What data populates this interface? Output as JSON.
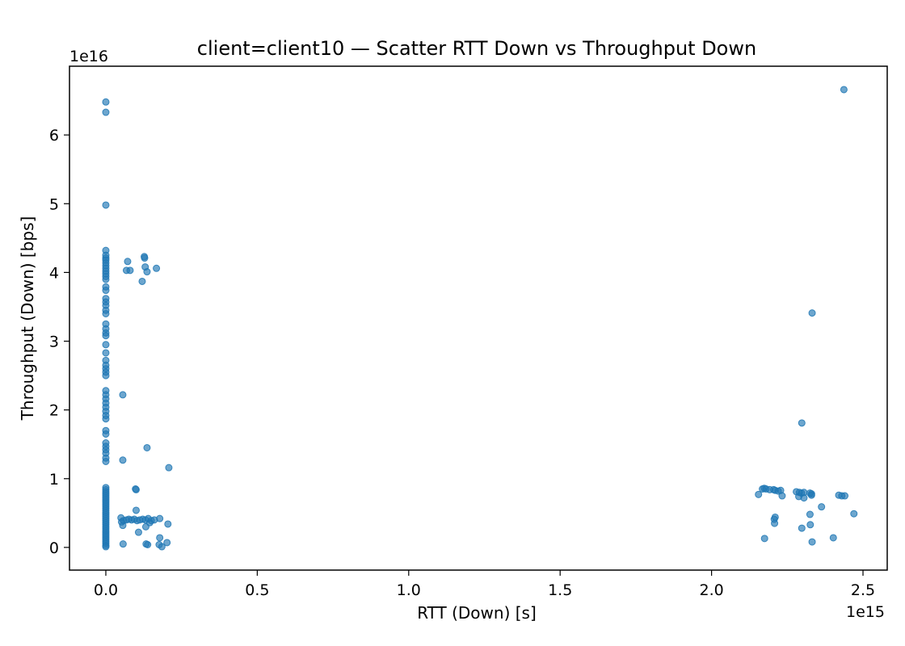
{
  "chart_data": {
    "type": "scatter",
    "title": "client=client10 — Scatter RTT Down vs Throughput Down",
    "xlabel": "RTT (Down) [s]",
    "ylabel": "Throughput (Down) [bps]",
    "x_offset_label": "1e15",
    "y_offset_label": "1e16",
    "x_scale": 1000000000000000.0,
    "y_scale": 1e+16,
    "xlim": [
      -0.12,
      2.58
    ],
    "ylim": [
      -0.33,
      7.0
    ],
    "x_ticks": [
      0.0,
      0.5,
      1.0,
      1.5,
      2.0,
      2.5
    ],
    "x_tick_labels": [
      "0.0",
      "0.5",
      "1.0",
      "1.5",
      "2.0",
      "2.5"
    ],
    "y_ticks": [
      0,
      1,
      2,
      3,
      4,
      5,
      6
    ],
    "y_tick_labels": [
      "0",
      "1",
      "2",
      "3",
      "4",
      "5",
      "6"
    ],
    "grid": false,
    "legend": "none",
    "marker_color": "#1f77b4",
    "marker_alpha": 0.65,
    "series": [
      {
        "points": [
          [
            0.0,
            6.48
          ],
          [
            0.0,
            6.33
          ],
          [
            0.0,
            4.98
          ],
          [
            0.0,
            4.32
          ],
          [
            0.0,
            4.25
          ],
          [
            0.0,
            4.21
          ],
          [
            0.0,
            4.18
          ],
          [
            0.0,
            4.14
          ],
          [
            0.0,
            4.1
          ],
          [
            0.0,
            4.06
          ],
          [
            0.0,
            4.02
          ],
          [
            0.0,
            3.98
          ],
          [
            0.0,
            3.94
          ],
          [
            0.0,
            3.9
          ],
          [
            0.0,
            3.79
          ],
          [
            0.0,
            3.74
          ],
          [
            0.0,
            3.62
          ],
          [
            0.0,
            3.57
          ],
          [
            0.0,
            3.52
          ],
          [
            0.0,
            3.45
          ],
          [
            0.0,
            3.4
          ],
          [
            0.0,
            3.25
          ],
          [
            0.0,
            3.18
          ],
          [
            0.0,
            3.12
          ],
          [
            0.0,
            3.08
          ],
          [
            0.0,
            2.95
          ],
          [
            0.0,
            2.83
          ],
          [
            0.0,
            2.72
          ],
          [
            0.0,
            2.65
          ],
          [
            0.0,
            2.6
          ],
          [
            0.0,
            2.55
          ],
          [
            0.0,
            2.5
          ],
          [
            0.0,
            2.28
          ],
          [
            0.0,
            2.22
          ],
          [
            0.0,
            2.16
          ],
          [
            0.0,
            2.1
          ],
          [
            0.0,
            2.04
          ],
          [
            0.0,
            1.98
          ],
          [
            0.0,
            1.92
          ],
          [
            0.0,
            1.87
          ],
          [
            0.0,
            1.7
          ],
          [
            0.0,
            1.65
          ],
          [
            0.0,
            1.52
          ],
          [
            0.0,
            1.47
          ],
          [
            0.0,
            1.42
          ],
          [
            0.0,
            1.37
          ],
          [
            0.0,
            1.3
          ],
          [
            0.0,
            1.25
          ],
          [
            0.0,
            0.87
          ],
          [
            0.0,
            0.84
          ],
          [
            0.0,
            0.81
          ],
          [
            0.0,
            0.78
          ],
          [
            0.0,
            0.75
          ],
          [
            0.0,
            0.72
          ],
          [
            0.0,
            0.69
          ],
          [
            0.0,
            0.66
          ],
          [
            0.0,
            0.63
          ],
          [
            0.0,
            0.6
          ],
          [
            0.0,
            0.57
          ],
          [
            0.0,
            0.54
          ],
          [
            0.0,
            0.51
          ],
          [
            0.0,
            0.48
          ],
          [
            0.0,
            0.45
          ],
          [
            0.0,
            0.42
          ],
          [
            0.0,
            0.39
          ],
          [
            0.0,
            0.36
          ],
          [
            0.0,
            0.33
          ],
          [
            0.0,
            0.3
          ],
          [
            0.0,
            0.27
          ],
          [
            0.0,
            0.24
          ],
          [
            0.0,
            0.21
          ],
          [
            0.0,
            0.18
          ],
          [
            0.0,
            0.15
          ],
          [
            0.0,
            0.12
          ],
          [
            0.0,
            0.09
          ],
          [
            0.0,
            0.06
          ],
          [
            0.0,
            0.03
          ],
          [
            0.0,
            0.01
          ],
          [
            0.072,
            4.16
          ],
          [
            0.068,
            4.03
          ],
          [
            0.08,
            4.03
          ],
          [
            0.127,
            4.23
          ],
          [
            0.128,
            4.21
          ],
          [
            0.13,
            4.08
          ],
          [
            0.136,
            4.01
          ],
          [
            0.167,
            4.06
          ],
          [
            0.12,
            3.87
          ],
          [
            0.056,
            2.22
          ],
          [
            0.136,
            1.45
          ],
          [
            0.056,
            1.27
          ],
          [
            0.208,
            1.16
          ],
          [
            0.098,
            0.85
          ],
          [
            0.1,
            0.84
          ],
          [
            0.1,
            0.54
          ],
          [
            0.05,
            0.43
          ],
          [
            0.058,
            0.39
          ],
          [
            0.068,
            0.4
          ],
          [
            0.076,
            0.41
          ],
          [
            0.085,
            0.4
          ],
          [
            0.094,
            0.41
          ],
          [
            0.103,
            0.39
          ],
          [
            0.112,
            0.4
          ],
          [
            0.122,
            0.41
          ],
          [
            0.131,
            0.4
          ],
          [
            0.14,
            0.42
          ],
          [
            0.15,
            0.39
          ],
          [
            0.16,
            0.4
          ],
          [
            0.178,
            0.42
          ],
          [
            0.145,
            0.36
          ],
          [
            0.052,
            0.37
          ],
          [
            0.056,
            0.32
          ],
          [
            0.132,
            0.3
          ],
          [
            0.205,
            0.34
          ],
          [
            0.108,
            0.22
          ],
          [
            0.178,
            0.14
          ],
          [
            0.202,
            0.07
          ],
          [
            0.176,
            0.04
          ],
          [
            0.185,
            0.01
          ],
          [
            0.057,
            0.05
          ],
          [
            0.133,
            0.05
          ],
          [
            0.138,
            0.04
          ],
          [
            2.168,
            0.85
          ],
          [
            2.174,
            0.86
          ],
          [
            2.18,
            0.85
          ],
          [
            2.192,
            0.84
          ],
          [
            2.205,
            0.84
          ],
          [
            2.21,
            0.83
          ],
          [
            2.22,
            0.82
          ],
          [
            2.228,
            0.83
          ],
          [
            2.155,
            0.77
          ],
          [
            2.233,
            0.75
          ],
          [
            2.28,
            0.81
          ],
          [
            2.29,
            0.8
          ],
          [
            2.297,
            0.79
          ],
          [
            2.305,
            0.8
          ],
          [
            2.325,
            0.79
          ],
          [
            2.33,
            0.78
          ],
          [
            2.288,
            0.74
          ],
          [
            2.305,
            0.72
          ],
          [
            2.33,
            0.76
          ],
          [
            2.42,
            0.76
          ],
          [
            2.43,
            0.75
          ],
          [
            2.44,
            0.75
          ],
          [
            2.363,
            0.59
          ],
          [
            2.21,
            0.44
          ],
          [
            2.207,
            0.41
          ],
          [
            2.208,
            0.35
          ],
          [
            2.325,
            0.48
          ],
          [
            2.47,
            0.49
          ],
          [
            2.326,
            0.33
          ],
          [
            2.298,
            0.28
          ],
          [
            2.175,
            0.13
          ],
          [
            2.402,
            0.14
          ],
          [
            2.332,
            0.08
          ],
          [
            2.298,
            1.81
          ],
          [
            2.332,
            3.41
          ],
          [
            2.437,
            6.66
          ]
        ]
      }
    ]
  }
}
